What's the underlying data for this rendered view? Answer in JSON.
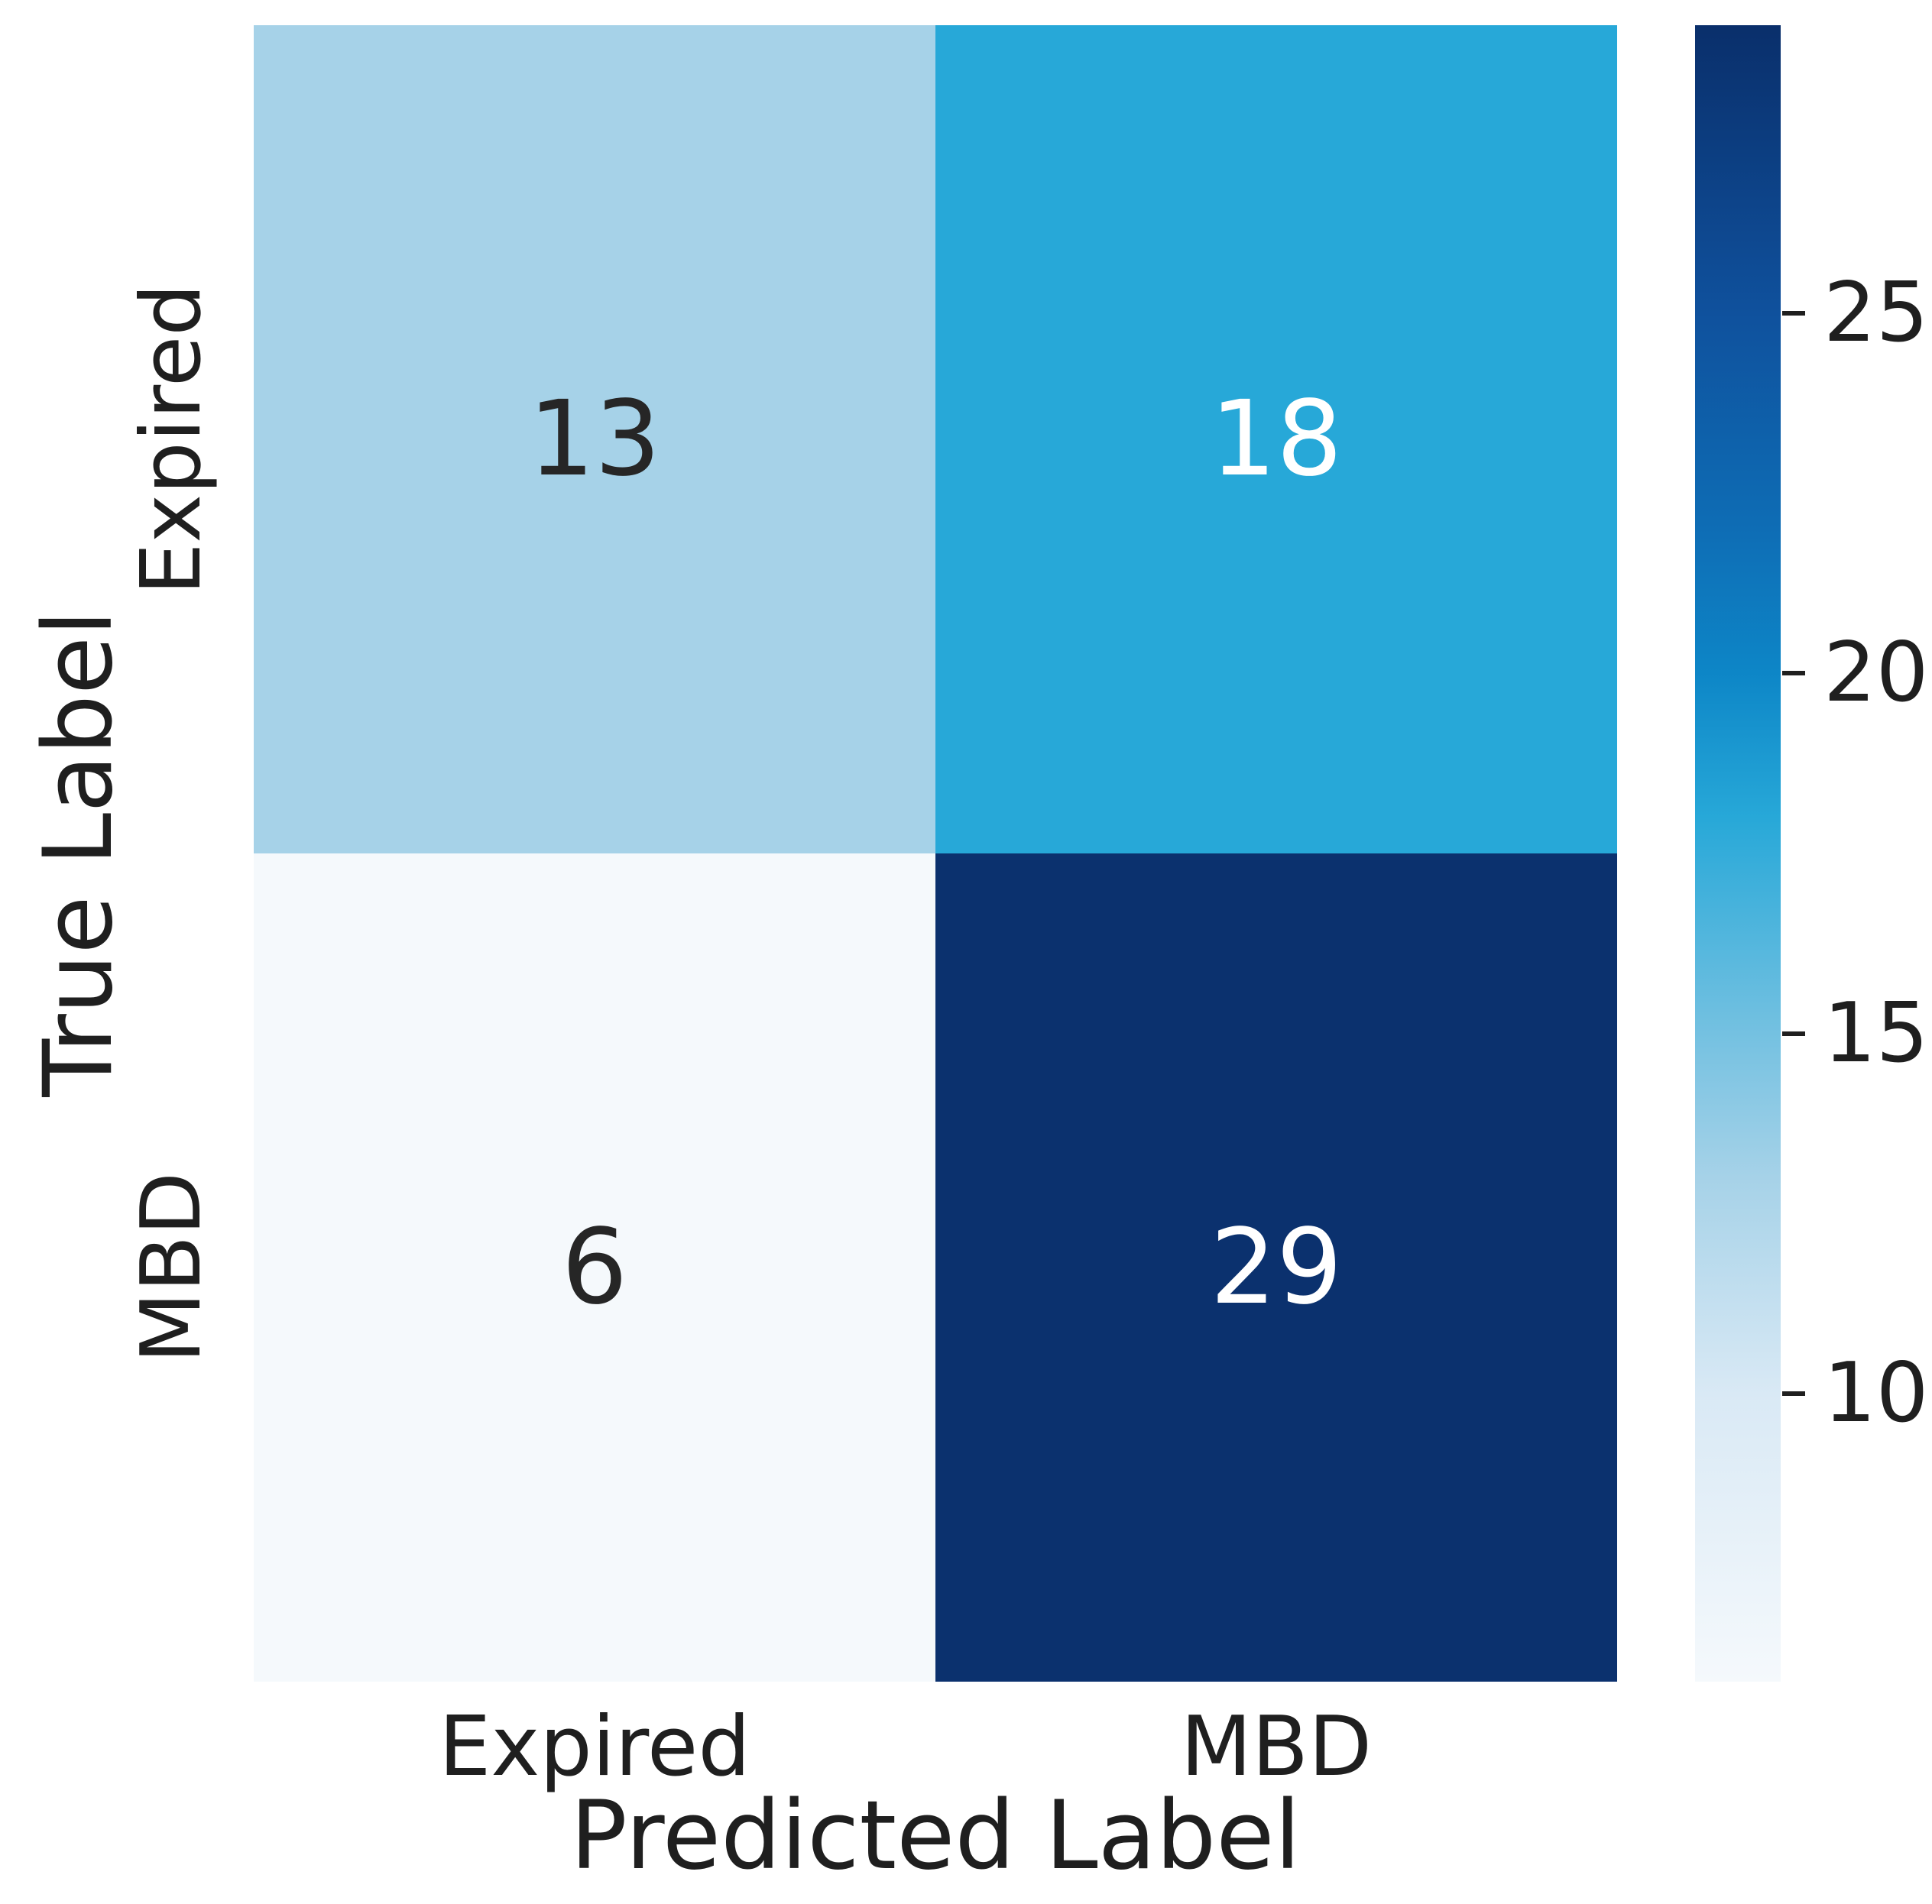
{
  "chart_data": {
    "type": "heatmap",
    "title": "",
    "xlabel": "Predicted Label",
    "ylabel": "True Label",
    "x_categories": [
      "Expired",
      "MBD"
    ],
    "y_categories": [
      "Expired",
      "MBD"
    ],
    "values": [
      [
        13,
        18
      ],
      [
        6,
        29
      ]
    ],
    "vmin": 6,
    "vmax": 29,
    "colormap": "Blues",
    "grid": false,
    "cell_colors": [
      [
        "#a6d2e8",
        "#27a8d8"
      ],
      [
        "#f5f9fc",
        "#0b316e"
      ]
    ],
    "cell_text_colors": [
      [
        "#262626",
        "#ffffff"
      ],
      [
        "#262626",
        "#ffffff"
      ]
    ],
    "colorbar": {
      "position": "right",
      "ticks": [
        25,
        20,
        15,
        10
      ],
      "gradient_stops": [
        {
          "value": 29,
          "color": "#0a2f6b"
        },
        {
          "value": 25,
          "color": "#0f519d"
        },
        {
          "value": 22,
          "color": "#0e6db5"
        },
        {
          "value": 20,
          "color": "#0d86c7"
        },
        {
          "value": 18,
          "color": "#27a8d8"
        },
        {
          "value": 15,
          "color": "#74c1e1"
        },
        {
          "value": 13,
          "color": "#a6d2e8"
        },
        {
          "value": 10,
          "color": "#d9e9f5"
        },
        {
          "value": 6,
          "color": "#f5f9fc"
        }
      ]
    }
  }
}
